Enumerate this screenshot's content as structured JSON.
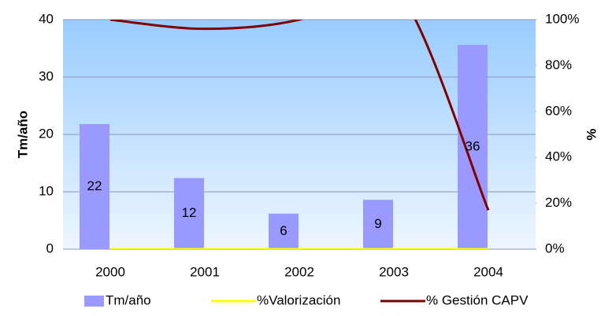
{
  "chart_data": {
    "type": "bar",
    "categories": [
      "2000",
      "2001",
      "2002",
      "2003",
      "2004"
    ],
    "series": [
      {
        "name": "Tm/año",
        "type": "bar",
        "color": "#9999ff",
        "values": [
          21.8,
          12.4,
          6.2,
          8.6,
          35.6
        ],
        "value_labels": [
          "22",
          "12",
          "6",
          "9",
          "36"
        ]
      },
      {
        "name": "%Valorización",
        "type": "line",
        "axis": "y2",
        "color": "#ffff00",
        "values": [
          0,
          0,
          0,
          0,
          0
        ]
      },
      {
        "name": "% Gestión CAPV",
        "type": "line",
        "axis": "y2",
        "color": "#800000",
        "values": [
          100,
          96,
          100,
          115,
          17
        ]
      }
    ],
    "ylabel": "Tm/año",
    "y2label": "%",
    "ylim": [
      0,
      40
    ],
    "yticks": [
      0,
      10,
      20,
      30,
      40
    ],
    "y2lim": [
      0,
      100
    ],
    "y2ticks": [
      {
        "value": 0,
        "label": "0%"
      },
      {
        "value": 20,
        "label": "20%"
      },
      {
        "value": 40,
        "label": "40%"
      },
      {
        "value": 60,
        "label": "60%"
      },
      {
        "value": 80,
        "label": "80%"
      },
      {
        "value": 100,
        "label": "100%"
      }
    ],
    "grid": true,
    "legend": "bottom"
  }
}
